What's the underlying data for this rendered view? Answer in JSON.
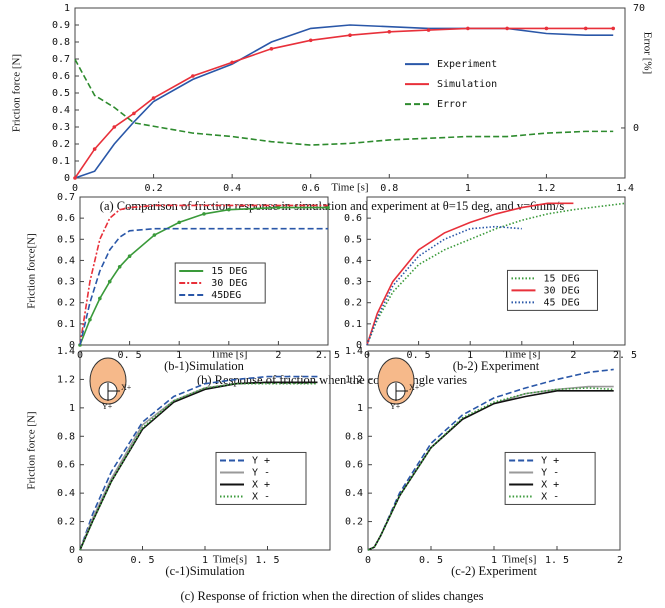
{
  "chart_data": [
    {
      "type": "line",
      "x_label": "Time [s]",
      "y_label": "Friction force [N]",
      "y2_label": "Error [%]",
      "caption": "(a) Comparison of friction response in simulation and experiment at θ=15 deg, and v=6mm/s",
      "xlim": [
        0,
        1.4
      ],
      "xticks": [
        0,
        0.2,
        0.4,
        0.6,
        0.8,
        1,
        1.2,
        1.4
      ],
      "ylim": [
        0,
        1
      ],
      "yticks": [
        0,
        0.1,
        0.2,
        0.3,
        0.4,
        0.5,
        0.6,
        0.7,
        0.8,
        0.9,
        1
      ],
      "y2lim": [
        -29.2,
        70
      ],
      "y2ticks": [
        0,
        70
      ],
      "legend": "right",
      "x": [
        0,
        0.05,
        0.1,
        0.15,
        0.2,
        0.3,
        0.4,
        0.5,
        0.6,
        0.7,
        0.8,
        0.9,
        1.0,
        1.1,
        1.2,
        1.3,
        1.37
      ],
      "series": [
        {
          "name": "Experiment",
          "color": "#2a57a8",
          "dash": "solid",
          "values": [
            0,
            0.04,
            0.2,
            0.33,
            0.45,
            0.58,
            0.67,
            0.8,
            0.88,
            0.9,
            0.89,
            0.88,
            0.88,
            0.88,
            0.85,
            0.84,
            0.84
          ]
        },
        {
          "name": "Simulation",
          "color": "#e8303a",
          "dash": "solid",
          "marker": "square",
          "values": [
            0,
            0.17,
            0.3,
            0.38,
            0.47,
            0.6,
            0.68,
            0.76,
            0.81,
            0.84,
            0.86,
            0.87,
            0.88,
            0.88,
            0.88,
            0.88,
            0.88
          ]
        },
        {
          "name": "Error",
          "color": "#2e8b2e",
          "dash": "dashed",
          "axis": "y2",
          "values": [
            40,
            19,
            12,
            3,
            1,
            -3,
            -5,
            -8,
            -10,
            -9,
            -7,
            -6,
            -5,
            -5,
            -3,
            -2,
            -2
          ]
        }
      ]
    },
    {
      "type": "line",
      "x_label": "Time [s]",
      "y_label": "Friction force[N]",
      "caption": "(b-1)Simulation",
      "xlim": [
        0,
        2.5
      ],
      "xticks": [
        0,
        {
          "value": 0.5,
          "label": "0. 5"
        },
        1,
        {
          "value": 1.5,
          "label": "1. 5"
        },
        2,
        {
          "value": 2.5,
          "label": "2. 5"
        }
      ],
      "ylim": [
        0,
        0.7
      ],
      "yticks": [
        0,
        0.1,
        0.2,
        0.3,
        0.4,
        0.5,
        0.6,
        0.7
      ],
      "legend": "center",
      "x": [
        0,
        0.1,
        0.2,
        0.3,
        0.4,
        0.5,
        0.75,
        1,
        1.25,
        1.5,
        2,
        2.5
      ],
      "series": [
        {
          "name": "15 DEG",
          "color": "#3a9a3a",
          "dash": "solid",
          "marker": "dot",
          "values": [
            0,
            0.12,
            0.22,
            0.3,
            0.37,
            0.42,
            0.52,
            0.58,
            0.62,
            0.64,
            0.65,
            0.65
          ]
        },
        {
          "name": "30 DEG",
          "color": "#e8303a",
          "dash": "dashdot",
          "values": [
            0,
            0.3,
            0.5,
            0.6,
            0.64,
            0.65,
            0.66,
            0.66,
            0.66,
            0.66,
            0.66,
            0.66
          ]
        },
        {
          "name": "45DEG",
          "color": "#2a57a8",
          "dash": "dashed",
          "values": [
            0,
            0.2,
            0.35,
            0.45,
            0.51,
            0.54,
            0.55,
            0.55,
            0.55,
            0.55,
            0.55,
            0.55
          ]
        }
      ]
    },
    {
      "type": "line",
      "x_label": "Time [s]",
      "caption": "(b-2) Experiment",
      "xlim": [
        0,
        2.5
      ],
      "xticks": [
        0,
        {
          "value": 0.5,
          "label": "0. 5"
        },
        1,
        {
          "value": 1.5,
          "label": "1. 5"
        },
        2,
        {
          "value": 2.5,
          "label": "2. 5"
        }
      ],
      "ylim": [
        0,
        0.7
      ],
      "yticks": [
        0,
        0.1,
        0.2,
        0.3,
        0.4,
        0.5,
        0.6
      ],
      "legend": "lower-right",
      "x": [
        0,
        0.1,
        0.25,
        0.5,
        0.75,
        1,
        1.25,
        1.5,
        1.75,
        2,
        2.5
      ],
      "series": [
        {
          "name": "15 DEG",
          "color": "#3a9a3a",
          "dash": "dotted",
          "values": [
            0,
            0.12,
            0.25,
            0.38,
            0.45,
            0.5,
            0.55,
            0.59,
            0.62,
            0.64,
            0.67
          ]
        },
        {
          "name": "30 DEG",
          "color": "#e8303a",
          "dash": "solid",
          "values": [
            0,
            0.15,
            0.3,
            0.45,
            0.53,
            0.58,
            0.62,
            0.65,
            0.67,
            0.67,
            null
          ]
        },
        {
          "name": "45 DEG",
          "color": "#2a57a8",
          "dash": "dotted",
          "values": [
            0,
            0.13,
            0.28,
            0.42,
            0.5,
            0.55,
            0.56,
            0.55,
            null,
            null,
            null
          ]
        }
      ]
    },
    {
      "type": "line",
      "x_label": "Time[s]",
      "y_label": "Friction force [N]",
      "caption": "(c-1)Simulation",
      "inset_labels": [
        "X+",
        "Y+"
      ],
      "xlim": [
        0,
        2
      ],
      "xticks": [
        0,
        {
          "value": 0.5,
          "label": "0. 5"
        },
        1,
        {
          "value": 1.5,
          "label": "1. 5"
        }
      ],
      "ylim": [
        0,
        1.4
      ],
      "yticks": [
        0,
        0.2,
        0.4,
        0.6,
        0.8,
        1,
        1.2,
        1.4
      ],
      "legend": "lower-right",
      "x": [
        0,
        0.1,
        0.25,
        0.5,
        0.75,
        1,
        1.25,
        1.5,
        1.9
      ],
      "series": [
        {
          "name": "Y +",
          "color": "#2a57a8",
          "dash": "dashed",
          "values": [
            0,
            0.25,
            0.55,
            0.9,
            1.08,
            1.17,
            1.2,
            1.22,
            1.22
          ]
        },
        {
          "name": "Y -",
          "color": "#999999",
          "dash": "solid",
          "values": [
            0,
            0.22,
            0.5,
            0.88,
            1.05,
            1.14,
            1.17,
            1.18,
            1.18
          ]
        },
        {
          "name": "X +",
          "color": "#111111",
          "dash": "solid",
          "values": [
            0,
            0.2,
            0.48,
            0.85,
            1.04,
            1.13,
            1.17,
            1.18,
            1.18
          ]
        },
        {
          "name": "X -",
          "color": "#3a9a3a",
          "dash": "dotted",
          "values": [
            0,
            0.2,
            0.48,
            0.86,
            1.05,
            1.14,
            1.17,
            1.17,
            1.17
          ]
        }
      ]
    },
    {
      "type": "line",
      "x_label": "Time[s]",
      "caption": "(c-2) Experiment",
      "inset_labels": [
        "X+",
        "Y+"
      ],
      "xlim": [
        0,
        2
      ],
      "xticks": [
        0,
        {
          "value": 0.5,
          "label": "0. 5"
        },
        1,
        {
          "value": 1.5,
          "label": "1. 5"
        },
        2
      ],
      "ylim": [
        0,
        1.4
      ],
      "yticks": [
        0,
        0.2,
        0.4,
        0.6,
        0.8,
        1,
        1.2,
        1.4
      ],
      "legend": "lower-right",
      "x": [
        0,
        0.05,
        0.1,
        0.25,
        0.5,
        0.75,
        1,
        1.25,
        1.5,
        1.75,
        1.95
      ],
      "series": [
        {
          "name": "Y +",
          "color": "#2a57a8",
          "dash": "dashed",
          "values": [
            0,
            0.02,
            0.1,
            0.4,
            0.75,
            0.95,
            1.07,
            1.14,
            1.2,
            1.25,
            1.27
          ]
        },
        {
          "name": "Y -",
          "color": "#999999",
          "dash": "solid",
          "values": [
            0,
            0.02,
            0.1,
            0.38,
            0.72,
            0.92,
            1.03,
            1.1,
            1.13,
            1.15,
            1.15
          ]
        },
        {
          "name": "X +",
          "color": "#111111",
          "dash": "solid",
          "values": [
            0,
            0.02,
            0.1,
            0.38,
            0.72,
            0.92,
            1.03,
            1.08,
            1.12,
            1.12,
            1.12
          ]
        },
        {
          "name": "X -",
          "color": "#3a9a3a",
          "dash": "dotted",
          "values": [
            0,
            0.02,
            0.1,
            0.38,
            0.72,
            0.93,
            1.04,
            1.1,
            1.13,
            1.14,
            1.13
          ]
        }
      ]
    }
  ],
  "figure_captions": [
    "(b) Response of friction when the contact angle varies",
    "(c) Response of friction when the direction of slides changes"
  ]
}
